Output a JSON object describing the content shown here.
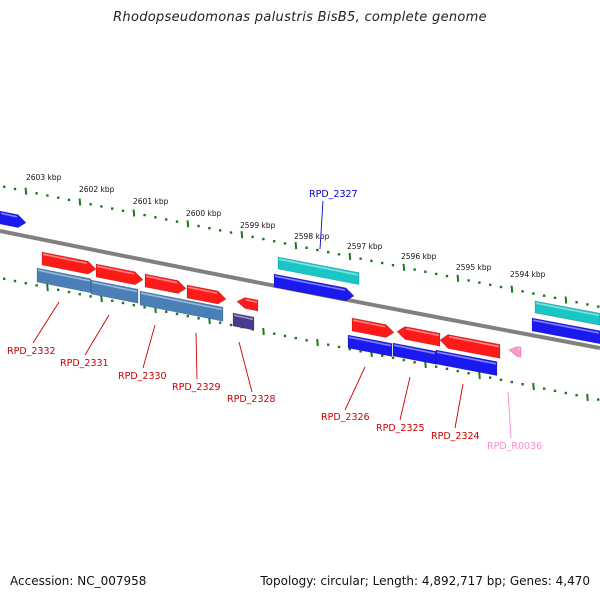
{
  "title": "Rhodopseudomonas palustris BisB5, complete genome",
  "footer": {
    "accession": "Accession: NC_007958",
    "topology": "Topology: circular; Length: 4,892,717 bp; Genes: 4,470"
  },
  "colors": {
    "backbone": "#808080",
    "tick": "#1a7a1a",
    "red_gene": "#ff1a1a",
    "steelblue_gene": "#4a7fb8",
    "blue_gene": "#1a1af0",
    "cyan_gene": "#19c6c6",
    "purple_gene": "#4a3a8c",
    "pink_gene": "#ff99cc",
    "label_red": "#cc0000",
    "label_blue": "#0000cc",
    "label_pink": "#ff88cc"
  },
  "kbp_labels": [
    "2603 kbp",
    "2602 kbp",
    "2601 kbp",
    "2600 kbp",
    "2599 kbp",
    "2598 kbp",
    "2597 kbp",
    "2596 kbp",
    "2595 kbp",
    "2594 kbp"
  ],
  "gene_labels": [
    {
      "text": "RPD_2332",
      "color": "red"
    },
    {
      "text": "RPD_2331",
      "color": "red"
    },
    {
      "text": "RPD_2330",
      "color": "red"
    },
    {
      "text": "RPD_2329",
      "color": "red"
    },
    {
      "text": "RPD_2328",
      "color": "red"
    },
    {
      "text": "RPD_2327",
      "color": "blue"
    },
    {
      "text": "RPD_2326",
      "color": "red"
    },
    {
      "text": "RPD_2325",
      "color": "red"
    },
    {
      "text": "RPD_2324",
      "color": "red"
    },
    {
      "text": "RPD_R0036",
      "color": "pink"
    }
  ]
}
